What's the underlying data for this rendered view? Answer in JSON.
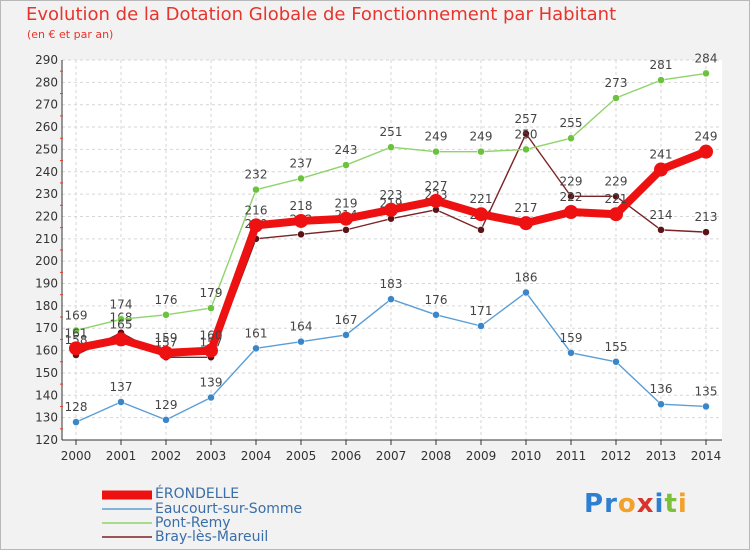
{
  "title": "Evolution de la Dotation Globale de Fonctionnement par Habitant",
  "subtitle": "(en € et par an)",
  "brand": {
    "letters": [
      "P",
      "r",
      "o",
      "x",
      "i",
      "t",
      "i"
    ],
    "colors": [
      "#2e7fd1",
      "#2e7fd1",
      "#f2a12b",
      "#d9342c",
      "#2e7fd1",
      "#7cbf3a",
      "#f2a12b"
    ]
  },
  "chart_data": {
    "type": "line",
    "x": [
      2000,
      2001,
      2002,
      2003,
      2004,
      2005,
      2006,
      2007,
      2008,
      2009,
      2010,
      2011,
      2012,
      2013,
      2014
    ],
    "ylim": [
      120,
      290
    ],
    "yticks": [
      120,
      130,
      140,
      150,
      160,
      170,
      180,
      190,
      200,
      210,
      220,
      230,
      240,
      250,
      260,
      270,
      280,
      290
    ],
    "grid": true,
    "legend": "bottom-left",
    "series": [
      {
        "name": "Bray-lès-Mareuil",
        "color": "#7b2326",
        "marker": "#5a1418",
        "values": [
          158,
          168,
          157,
          157,
          210,
          212,
          214,
          219,
          223,
          214,
          257,
          229,
          229,
          214,
          213
        ],
        "labels": [
          158,
          168,
          157,
          157,
          210,
          212,
          214,
          219,
          223,
          214,
          257,
          229,
          229,
          214,
          213
        ]
      },
      {
        "name": "Pont-Remy",
        "color": "#8fd46a",
        "marker": "#6cc13f",
        "values": [
          169,
          174,
          176,
          179,
          232,
          237,
          243,
          251,
          249,
          249,
          250,
          255,
          273,
          281,
          284
        ],
        "labels": [
          169,
          174,
          176,
          179,
          232,
          237,
          243,
          251,
          249,
          249,
          250,
          255,
          273,
          281,
          284
        ]
      },
      {
        "name": "Eaucourt-sur-Somme",
        "color": "#5b9ed6",
        "marker": "#3a86c8",
        "values": [
          128,
          137,
          129,
          139,
          161,
          164,
          167,
          183,
          176,
          171,
          186,
          159,
          155,
          136,
          135
        ],
        "labels": [
          128,
          137,
          129,
          139,
          161,
          164,
          167,
          183,
          176,
          171,
          186,
          159,
          155,
          136,
          135
        ]
      },
      {
        "name": "ÉRONDELLE",
        "color": "#ee1111",
        "marker": "#ee1111",
        "values": [
          161,
          165,
          159,
          160,
          216,
          218,
          219,
          223,
          227,
          221,
          217,
          222,
          221,
          241,
          249
        ],
        "labels": [
          161,
          165,
          159,
          160,
          216,
          218,
          219,
          223,
          227,
          221,
          217,
          222,
          221,
          241,
          249
        ]
      }
    ],
    "legend_entries": [
      "ÉRONDELLE",
      "Eaucourt-sur-Somme",
      "Pont-Remy",
      "Bray-lès-Mareuil"
    ]
  }
}
